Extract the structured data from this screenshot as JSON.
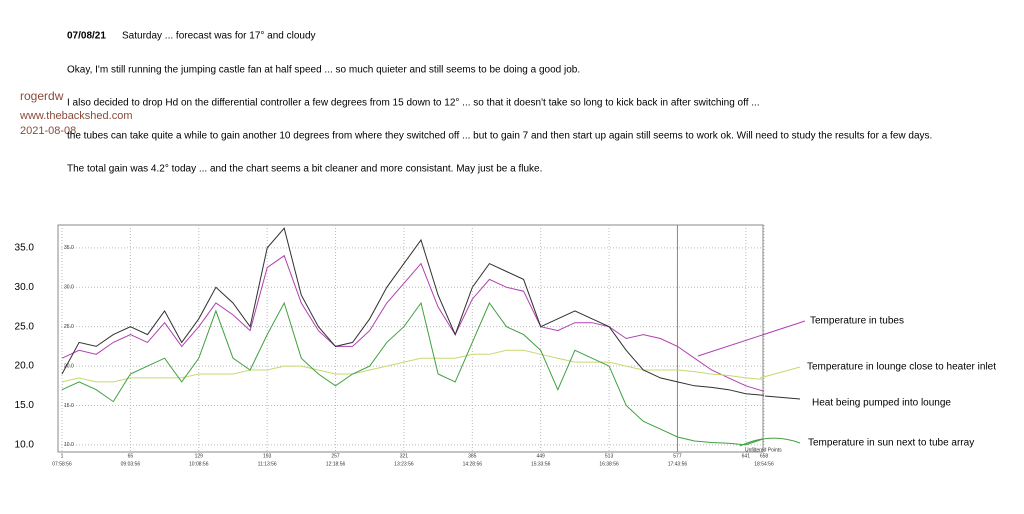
{
  "author": "rogerdw",
  "site": "www.thebackshed.com",
  "date": "2021-08-08",
  "post": {
    "heading_date": "07/08/21",
    "heading_text": "Saturday  ...  forecast was for 17° and cloudy",
    "paragraphs": [
      "Okay, I'm still running the jumping castle fan at half speed  ...  so much quieter and still seems to be doing a good job.",
      "I also decided to drop Hd on the differential controller a few degrees from 15 down to 12°  ...  so that it doesn't take so long to kick back in after switching off  ...",
      "the tubes can take quite a while to gain another 10 degrees from where they switched off  ...  but to gain 7 and then start up again still seems to work ok. Will need to study the results for a few days.",
      "The total gain was 4.2° today  ...  and the chart seems a bit cleaner and more consistant. May just be a fluke."
    ]
  },
  "chart_data": {
    "type": "line",
    "note": "Unfiltered Points",
    "x": [
      1,
      17,
      33,
      49,
      65,
      81,
      97,
      113,
      129,
      145,
      161,
      177,
      193,
      209,
      225,
      241,
      257,
      273,
      289,
      305,
      321,
      337,
      353,
      369,
      385,
      401,
      417,
      433,
      449,
      465,
      481,
      497,
      513,
      529,
      545,
      561,
      577,
      593,
      609,
      625,
      641,
      658
    ],
    "xlim": [
      1,
      658
    ],
    "xticks": [
      1,
      65,
      129,
      193,
      257,
      321,
      385,
      449,
      513,
      577,
      641,
      658
    ],
    "xtick_times": [
      "07:58:56",
      "09:03:56",
      "10:08:56",
      "11:13:56",
      "12:18:56",
      "13:23:56",
      "14:28:56",
      "15:33:56",
      "16:38:56",
      "17:43:56",
      null,
      "18:54:56"
    ],
    "ylim": [
      9.1,
      37.9
    ],
    "yticks": [
      {
        "value": 10,
        "label": "10.0"
      },
      {
        "value": 15,
        "label": "15.0"
      },
      {
        "value": 20,
        "label": "20.0"
      },
      {
        "value": 25,
        "label": "25.0"
      },
      {
        "value": 30,
        "label": "30.0"
      },
      {
        "value": 35,
        "label": "35.0"
      }
    ],
    "grid": true,
    "cursor_x": 577,
    "cursor_color": "#e07030",
    "series": [
      {
        "name": "Temperature in tubes",
        "color": "#b040b0",
        "values": [
          21,
          22,
          21.5,
          23,
          24,
          23,
          25.5,
          22.5,
          25,
          28,
          26.5,
          24.5,
          32.5,
          34,
          28,
          24.5,
          22.5,
          22.5,
          24.5,
          28,
          30.5,
          33,
          27.5,
          24,
          28.5,
          31,
          30,
          29.5,
          25,
          24.5,
          25.5,
          25.5,
          25,
          23.5,
          24,
          23.5,
          22.5,
          21,
          19.5,
          18.5,
          17.5,
          16.8
        ]
      },
      {
        "name": "Temperature in lounge close to heater inlet",
        "color": "#c8d870",
        "values": [
          18,
          18.5,
          18,
          18,
          18.5,
          18.5,
          18.5,
          18.5,
          19,
          19,
          19,
          19.5,
          19.5,
          20,
          20,
          19.5,
          19,
          19,
          19.5,
          20,
          20.5,
          21,
          21,
          21,
          21.5,
          21.5,
          22,
          22,
          21.5,
          21,
          20.5,
          20.5,
          20.5,
          20,
          19.5,
          19.5,
          19.5,
          19.3,
          19,
          18.8,
          18.5,
          18.3
        ]
      },
      {
        "name": "Heat being pumped into lounge",
        "color": "#303030",
        "values": [
          19,
          23,
          22.5,
          24,
          25,
          24,
          27,
          23,
          26,
          30,
          28,
          25,
          35,
          37.5,
          29,
          25,
          22.5,
          23,
          26,
          30,
          33,
          36,
          29,
          24,
          30,
          33,
          32,
          31,
          25,
          26,
          27,
          26,
          25,
          22,
          19.5,
          18.5,
          18,
          17.5,
          17.3,
          17,
          16.5,
          16.3
        ]
      },
      {
        "name": "Temperature in sun next to tube array",
        "color": "#40a040",
        "values": [
          17,
          18,
          17,
          15.5,
          19,
          20,
          21,
          18,
          21,
          27,
          21,
          19.5,
          24,
          28,
          21,
          19,
          17.5,
          19,
          20,
          23,
          25,
          28,
          19,
          18,
          23,
          28,
          25,
          24,
          22,
          17,
          22,
          21,
          20,
          15,
          13,
          12,
          11,
          10.5,
          10.3,
          10.2,
          10,
          10.8
        ]
      }
    ]
  }
}
